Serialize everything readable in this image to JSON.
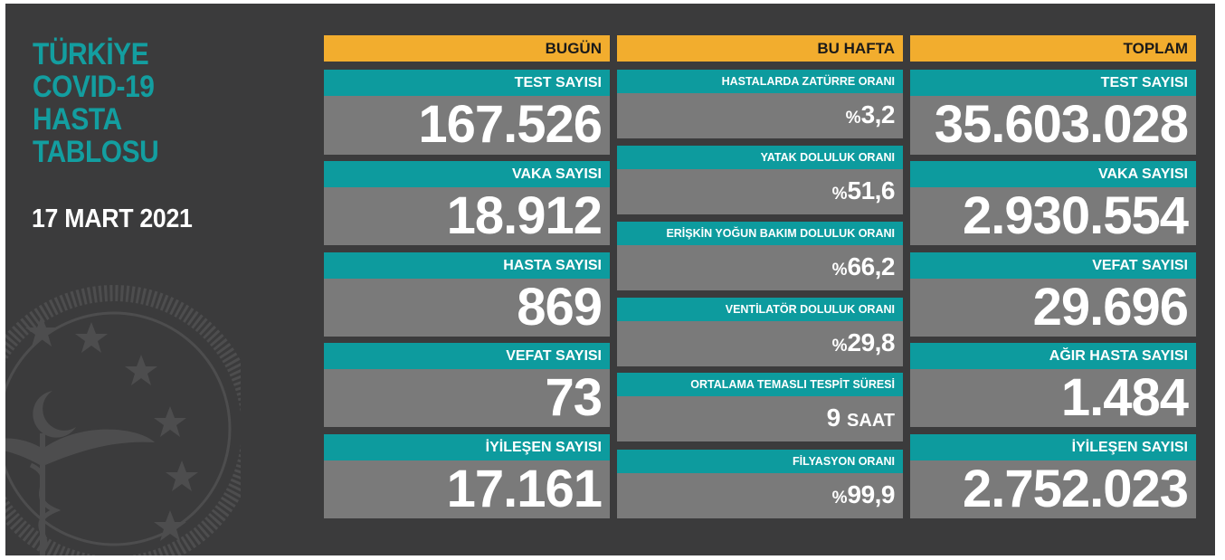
{
  "title_lines": [
    "TÜRKİYE",
    "COVID-19",
    "HASTA",
    "TABLOSU"
  ],
  "date": "17 MART 2021",
  "colors": {
    "background": "#3b3b3c",
    "header": "#f2ad2e",
    "label": "#0d9b9e",
    "value_bg": "#7a7a7a",
    "title": "#139ea0"
  },
  "today": {
    "header": "BUGÜN",
    "items": [
      {
        "label": "TEST SAYISI",
        "value": "167.526"
      },
      {
        "label": "VAKA SAYISI",
        "value": "18.912"
      },
      {
        "label": "HASTA SAYISI",
        "value": "869"
      },
      {
        "label": "VEFAT SAYISI",
        "value": "73"
      },
      {
        "label": "İYİLEŞEN SAYISI",
        "value": "17.161"
      }
    ]
  },
  "week": {
    "header": "BU HAFTA",
    "items": [
      {
        "label": "HASTALARDA ZATÜRRE ORANI",
        "prefix": "%",
        "value": "3,2"
      },
      {
        "label": "YATAK DOLULUK ORANI",
        "prefix": "%",
        "value": "51,6"
      },
      {
        "label": "ERİŞKİN YOĞUN BAKIM DOLULUK ORANI",
        "prefix": "%",
        "value": "66,2"
      },
      {
        "label": "VENTİLATÖR DOLULUK ORANI",
        "prefix": "%",
        "value": "29,8"
      },
      {
        "label": "ORTALAMA TEMASLI TESPİT SÜRESİ",
        "value": "9",
        "unit": "SAAT"
      },
      {
        "label": "FİLYASYON ORANI",
        "prefix": "%",
        "value": "99,9"
      }
    ]
  },
  "total": {
    "header": "TOPLAM",
    "items": [
      {
        "label": "TEST SAYISI",
        "value": "35.603.028"
      },
      {
        "label": "VAKA SAYISI",
        "value": "2.930.554"
      },
      {
        "label": "VEFAT SAYISI",
        "value": "29.696"
      },
      {
        "label": "AĞIR HASTA SAYISI",
        "value": "1.484"
      },
      {
        "label": "İYİLEŞEN SAYISI",
        "value": "2.752.023"
      }
    ]
  }
}
